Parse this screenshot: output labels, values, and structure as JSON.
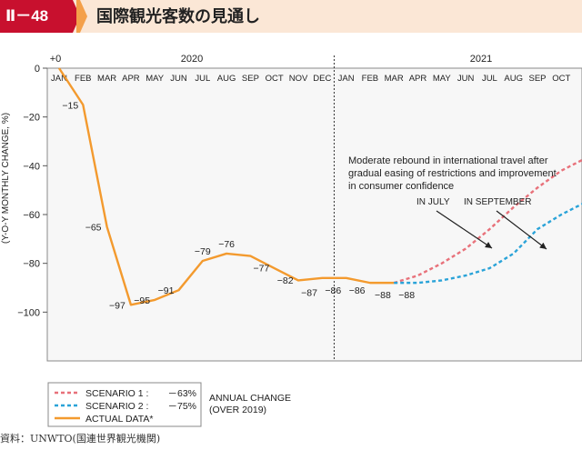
{
  "header": {
    "badge": "Ⅱ－48",
    "title": "国際観光客数の見通し"
  },
  "chart_data": {
    "type": "line",
    "title": "国際観光客数の見通し",
    "ylabel": "(Y-O-Y MONTHLY CHANGE, %)",
    "ylim": [
      -120,
      0
    ],
    "yticks": [
      0,
      -20,
      -40,
      -60,
      -80,
      -100
    ],
    "year_labels": [
      "2020",
      "2021"
    ],
    "start_label": "+0",
    "months": [
      "JAN",
      "FEB",
      "MAR",
      "APR",
      "MAY",
      "JUN",
      "JUL",
      "AUG",
      "SEP",
      "OCT",
      "NOV",
      "DEC",
      "JAN",
      "FEB",
      "MAR",
      "APR",
      "MAY",
      "JUN",
      "JUL",
      "AUG",
      "SEP",
      "OCT"
    ],
    "series": [
      {
        "name": "ACTUAL DATA*",
        "color": "#f39a2e",
        "style": "solid",
        "x": [
          0,
          1,
          2,
          3,
          4,
          5,
          6,
          7,
          8,
          9,
          10,
          11,
          12,
          13,
          14
        ],
        "values": [
          0,
          -15,
          -65,
          -97,
          -95,
          -91,
          -79,
          -76,
          -77,
          -82,
          -87,
          -86,
          -86,
          -88,
          -88
        ]
      },
      {
        "name": "SCENARIO 1 :",
        "change": "－63%",
        "color": "#e8717a",
        "style": "dashed",
        "x": [
          14,
          15,
          16,
          17,
          18,
          19,
          20,
          21,
          22
        ],
        "values": [
          -88,
          -85,
          -80,
          -74,
          -66,
          -57,
          -49,
          -42,
          -37
        ]
      },
      {
        "name": "SCENARIO 2 :",
        "change": "－75%",
        "color": "#2aa3d8",
        "style": "dashed",
        "x": [
          14,
          15,
          16,
          17,
          18,
          19,
          20,
          21,
          22
        ],
        "values": [
          -88,
          -88,
          -87,
          -85,
          -82,
          -76,
          -66,
          -60,
          -55
        ]
      }
    ],
    "data_labels": [
      "−15",
      "−65",
      "−97",
      "−95",
      "−91",
      "−79",
      "−76",
      "−77",
      "−82",
      "−87",
      "−86",
      "−86",
      "−88",
      "−88"
    ],
    "annotation": {
      "lines": [
        "Moderate rebound in international travel after",
        "gradual easing of restrictions and improvement",
        "in consumer confidence"
      ],
      "arrow1": "IN JULY",
      "arrow2": "IN SEPTEMBER"
    },
    "legend": {
      "title_lines": [
        "ANNUAL CHANGE",
        "(OVER 2019)"
      ]
    }
  },
  "source": "資料：UNWTO(国連世界観光機関)"
}
